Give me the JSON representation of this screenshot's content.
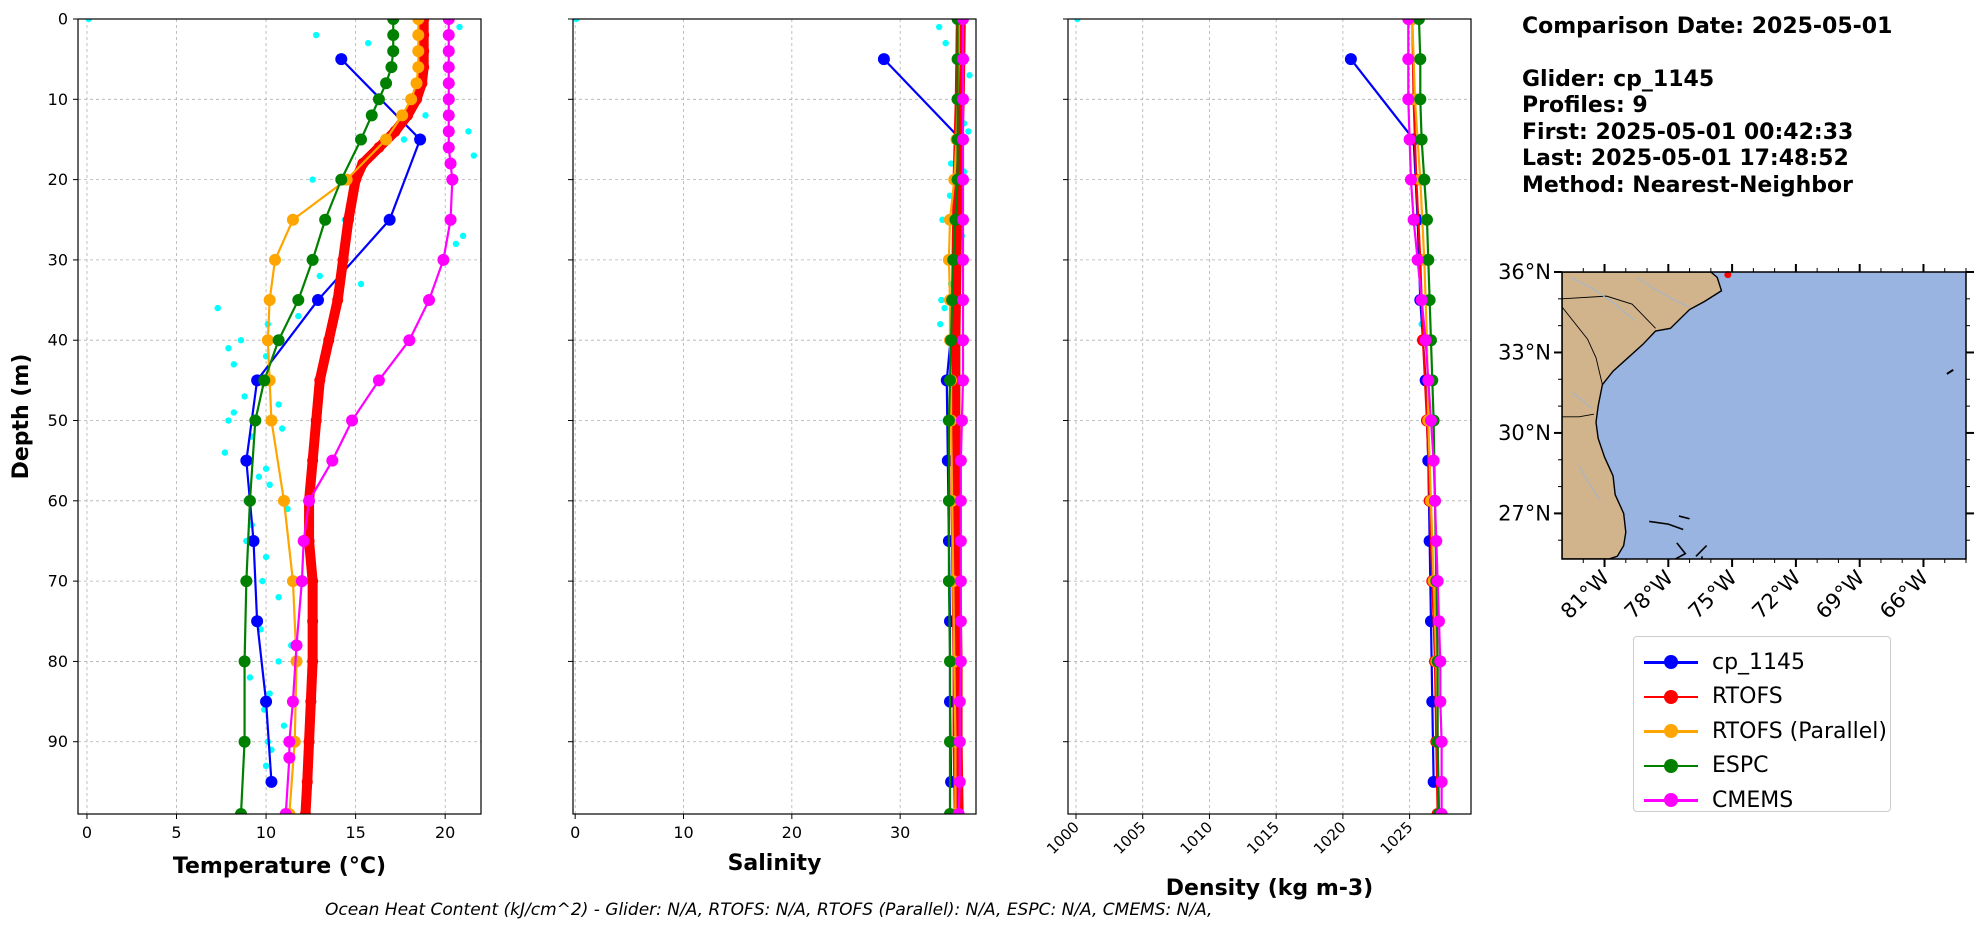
{
  "colors": {
    "glider": "#0000ff",
    "rtofs": "#ff0000",
    "rtofs_parallel": "#ffa500",
    "espc": "#008000",
    "cmems": "#ff00ff",
    "raw": "#00ffff",
    "land": "#d2b48c",
    "ocean": "#99b4e0",
    "grid": "#b0b0b0"
  },
  "info": {
    "comparison_date": "Comparison Date: 2025-05-01",
    "glider": "Glider: cp_1145",
    "profiles": "Profiles: 9",
    "first": "First: 2025-05-01 00:42:33",
    "last": "Last: 2025-05-01 17:48:52",
    "method": "Method: Nearest-Neighbor"
  },
  "legend": [
    {
      "label": "cp_1145",
      "color": "#0000ff"
    },
    {
      "label": "RTOFS",
      "color": "#ff0000"
    },
    {
      "label": "RTOFS (Parallel)",
      "color": "#ffa500"
    },
    {
      "label": "ESPC",
      "color": "#008000"
    },
    {
      "label": "CMEMS",
      "color": "#ff00ff"
    }
  ],
  "footer": "Ocean Heat Content (kJ/cm^2) - Glider: N/A,  RTOFS: N/A,  RTOFS (Parallel): N/A,  ESPC: N/A,  CMEMS: N/A,",
  "map": {
    "lat_ticks": [
      "36°N",
      "33°N",
      "30°N",
      "27°N"
    ],
    "lat_values": [
      36,
      33,
      30,
      27
    ],
    "lon_ticks": [
      "81°W",
      "78°W",
      "75°W",
      "72°W",
      "69°W",
      "66°W"
    ],
    "lon_values": [
      -81,
      -78,
      -75,
      -72,
      -69,
      -66
    ],
    "lon_range": [
      -83,
      -64
    ],
    "lat_range": [
      25.3,
      36
    ],
    "glider_position": {
      "lon": -75.2,
      "lat": 35.9
    }
  },
  "chart_data": [
    {
      "type": "line",
      "xlabel": "Temperature (°C)",
      "ylabel": "Depth (m)",
      "xlim": [
        -0.5,
        22
      ],
      "ylim": [
        99,
        0
      ],
      "xticks": [
        0,
        5,
        10,
        15,
        20
      ],
      "yticks": [
        0,
        10,
        20,
        30,
        40,
        50,
        60,
        70,
        80,
        90
      ],
      "grid": true,
      "series": [
        {
          "name": "raw",
          "style": "scatter",
          "depth": [
            0,
            1,
            2,
            3,
            12,
            14,
            15,
            17,
            20,
            25,
            27,
            28,
            32,
            33,
            36,
            37,
            38,
            40,
            41,
            42,
            43,
            45,
            47,
            48,
            49,
            50,
            51,
            52,
            54,
            56,
            57,
            58,
            60,
            61,
            63,
            65,
            67,
            70,
            72,
            76,
            78,
            80,
            82,
            84,
            86,
            88,
            90,
            91,
            93,
            95
          ],
          "values": [
            0.1,
            20.8,
            12.8,
            15.7,
            18.9,
            21.3,
            17.7,
            21.6,
            12.6,
            14.4,
            21.0,
            20.6,
            13.0,
            15.3,
            7.3,
            11.8,
            10.1,
            8.6,
            7.9,
            10.0,
            8.2,
            9.4,
            8.8,
            10.7,
            8.2,
            7.9,
            10.9,
            9.2,
            7.7,
            10.0,
            9.6,
            10.2,
            8.9,
            11.2,
            9.2,
            8.9,
            10.0,
            9.8,
            10.7,
            9.7,
            11.4,
            10.7,
            9.1,
            10.2,
            9.9,
            11.0,
            10.1,
            10.3,
            10.0,
            10.4
          ]
        },
        {
          "name": "cp_1145",
          "style": "line",
          "depth": [
            5,
            15,
            25,
            35,
            45,
            55,
            65,
            75,
            85,
            95
          ],
          "values": [
            14.2,
            18.6,
            16.9,
            12.9,
            9.5,
            8.9,
            9.3,
            9.5,
            10.0,
            10.3
          ]
        },
        {
          "name": "RTOFS",
          "style": "thick",
          "depth": [
            0,
            2,
            4,
            6,
            8,
            10,
            12,
            14,
            16,
            18,
            20,
            25,
            30,
            35,
            40,
            45,
            50,
            55,
            60,
            65,
            70,
            75,
            80,
            85,
            90,
            95,
            99
          ],
          "values": [
            18.8,
            18.8,
            18.8,
            18.8,
            18.7,
            18.4,
            17.9,
            17.2,
            16.3,
            15.4,
            15.0,
            14.6,
            14.3,
            14.0,
            13.5,
            13.0,
            12.8,
            12.6,
            12.4,
            12.4,
            12.6,
            12.6,
            12.6,
            12.5,
            12.4,
            12.3,
            12.2
          ]
        },
        {
          "name": "RTOFS (Parallel)",
          "style": "line",
          "depth": [
            0,
            2,
            4,
            6,
            8,
            10,
            12,
            15,
            20,
            25,
            30,
            35,
            40,
            45,
            50,
            60,
            70,
            80,
            90,
            99
          ],
          "values": [
            18.5,
            18.5,
            18.5,
            18.5,
            18.4,
            18.1,
            17.6,
            16.7,
            14.5,
            11.5,
            10.5,
            10.2,
            10.1,
            10.2,
            10.3,
            11.0,
            11.5,
            11.7,
            11.6,
            11.3
          ]
        },
        {
          "name": "ESPC",
          "style": "line",
          "depth": [
            0,
            2,
            4,
            6,
            8,
            10,
            12,
            15,
            20,
            25,
            30,
            35,
            40,
            45,
            50,
            60,
            70,
            80,
            90,
            99
          ],
          "values": [
            17.1,
            17.1,
            17.1,
            17.0,
            16.7,
            16.3,
            15.9,
            15.3,
            14.2,
            13.3,
            12.6,
            11.8,
            10.7,
            9.9,
            9.4,
            9.1,
            8.9,
            8.8,
            8.8,
            8.6
          ]
        },
        {
          "name": "CMEMS",
          "style": "line",
          "depth": [
            0,
            2,
            4,
            6,
            8,
            10,
            12,
            14,
            16,
            18,
            20,
            25,
            30,
            35,
            40,
            45,
            50,
            55,
            60,
            65,
            70,
            78,
            85,
            90,
            92,
            99
          ],
          "values": [
            20.2,
            20.2,
            20.2,
            20.2,
            20.2,
            20.2,
            20.2,
            20.2,
            20.2,
            20.3,
            20.4,
            20.3,
            19.9,
            19.1,
            18.0,
            16.3,
            14.8,
            13.7,
            12.4,
            12.1,
            12.0,
            11.7,
            11.5,
            11.3,
            11.3,
            11.1
          ]
        }
      ]
    },
    {
      "type": "line",
      "xlabel": "Salinity",
      "ylabel": "",
      "xlim": [
        -0.2,
        37
      ],
      "ylim": [
        99,
        0
      ],
      "xticks": [
        0,
        10,
        20,
        30
      ],
      "yticks": [
        0,
        10,
        20,
        30,
        40,
        50,
        60,
        70,
        80,
        90
      ],
      "grid": true,
      "series": [
        {
          "name": "raw",
          "style": "scatter",
          "depth": [
            0,
            1,
            3,
            5,
            7,
            10,
            13,
            14,
            16,
            18,
            19,
            22,
            25,
            27,
            30,
            33,
            35,
            36,
            38,
            40,
            45,
            50,
            60,
            70,
            80,
            90
          ],
          "values": [
            0.1,
            33.6,
            34.2,
            36.1,
            36.4,
            35.8,
            35.9,
            36.3,
            35.5,
            34.7,
            35.9,
            34.6,
            33.9,
            35.7,
            34.3,
            34.7,
            33.8,
            34.1,
            33.7,
            34.4,
            34.1,
            34.2,
            34.3,
            34.4,
            34.4,
            34.5
          ]
        },
        {
          "name": "cp_1145",
          "style": "line",
          "depth": [
            5,
            15,
            25,
            35,
            45,
            55,
            65,
            75,
            85,
            95
          ],
          "values": [
            28.5,
            35.6,
            35.2,
            35.0,
            34.3,
            34.4,
            34.5,
            34.6,
            34.6,
            34.7
          ]
        },
        {
          "name": "RTOFS",
          "style": "thick",
          "depth": [
            0,
            10,
            20,
            30,
            40,
            50,
            60,
            70,
            80,
            90,
            99
          ],
          "values": [
            35.6,
            35.5,
            35.3,
            35.2,
            35.1,
            35.1,
            35.1,
            35.2,
            35.3,
            35.3,
            35.4
          ]
        },
        {
          "name": "RTOFS (Parallel)",
          "style": "line",
          "depth": [
            0,
            5,
            10,
            15,
            20,
            25,
            30,
            35,
            40,
            45,
            50,
            60,
            70,
            80,
            90,
            99
          ],
          "values": [
            35.4,
            35.4,
            35.3,
            35.2,
            35.0,
            34.6,
            34.5,
            34.6,
            34.6,
            34.7,
            34.7,
            34.8,
            34.9,
            35.0,
            35.1,
            35.1
          ]
        },
        {
          "name": "ESPC",
          "style": "line",
          "depth": [
            0,
            5,
            10,
            15,
            20,
            25,
            30,
            35,
            40,
            45,
            50,
            60,
            70,
            80,
            90,
            99
          ],
          "values": [
            35.3,
            35.3,
            35.3,
            35.3,
            35.3,
            35.1,
            34.9,
            34.8,
            34.7,
            34.6,
            34.5,
            34.5,
            34.5,
            34.6,
            34.6,
            34.6
          ]
        },
        {
          "name": "CMEMS",
          "style": "line",
          "depth": [
            0,
            5,
            10,
            15,
            20,
            25,
            30,
            35,
            40,
            45,
            50,
            55,
            60,
            65,
            70,
            75,
            80,
            85,
            90,
            95,
            99
          ],
          "values": [
            35.8,
            35.8,
            35.8,
            35.8,
            35.8,
            35.8,
            35.8,
            35.8,
            35.8,
            35.8,
            35.7,
            35.6,
            35.6,
            35.6,
            35.6,
            35.6,
            35.6,
            35.5,
            35.5,
            35.5,
            35.4
          ]
        }
      ]
    },
    {
      "type": "line",
      "xlabel": "Density (kg m-3)",
      "ylabel": "",
      "xlim": [
        999.4,
        1029.6
      ],
      "ylim": [
        99,
        0
      ],
      "xticks": [
        1000,
        1005,
        1010,
        1015,
        1020,
        1025
      ],
      "yticks": [
        0,
        10,
        20,
        30,
        40,
        50,
        60,
        70,
        80,
        90
      ],
      "grid": true,
      "series": [
        {
          "name": "raw",
          "style": "scatter",
          "depth": [
            0,
            35,
            38,
            55
          ],
          "values": [
            1000.1,
            1025.6,
            1025.9,
            1026.3
          ]
        },
        {
          "name": "cp_1145",
          "style": "line",
          "depth": [
            5,
            15,
            25,
            35,
            45,
            55,
            65,
            75,
            85,
            95
          ],
          "values": [
            1020.6,
            1025.3,
            1025.6,
            1025.8,
            1026.2,
            1026.4,
            1026.5,
            1026.6,
            1026.7,
            1026.8
          ]
        },
        {
          "name": "RTOFS",
          "style": "line",
          "depth": [
            0,
            10,
            20,
            30,
            40,
            50,
            60,
            70,
            80,
            90,
            99
          ],
          "values": [
            1025.2,
            1025.3,
            1025.5,
            1025.8,
            1026.0,
            1026.3,
            1026.5,
            1026.7,
            1026.9,
            1027.0,
            1027.1
          ]
        },
        {
          "name": "RTOFS (Parallel)",
          "style": "line",
          "depth": [
            0,
            10,
            20,
            30,
            40,
            50,
            60,
            70,
            80,
            90,
            99
          ],
          "values": [
            1025.2,
            1025.4,
            1025.8,
            1026.1,
            1026.3,
            1026.4,
            1026.6,
            1026.8,
            1027.0,
            1027.1,
            1027.2
          ]
        },
        {
          "name": "ESPC",
          "style": "line",
          "depth": [
            0,
            5,
            10,
            15,
            20,
            25,
            30,
            35,
            40,
            45,
            50,
            60,
            70,
            80,
            90,
            99
          ],
          "values": [
            1025.7,
            1025.8,
            1025.8,
            1025.9,
            1026.1,
            1026.3,
            1026.4,
            1026.5,
            1026.6,
            1026.7,
            1026.8,
            1026.9,
            1027.0,
            1027.1,
            1027.1,
            1027.2
          ]
        },
        {
          "name": "CMEMS",
          "style": "line",
          "depth": [
            0,
            5,
            10,
            15,
            20,
            25,
            30,
            35,
            40,
            45,
            50,
            55,
            60,
            65,
            70,
            75,
            80,
            85,
            90,
            95,
            99
          ],
          "values": [
            1024.9,
            1024.9,
            1024.9,
            1025.0,
            1025.1,
            1025.3,
            1025.6,
            1025.9,
            1026.2,
            1026.4,
            1026.6,
            1026.8,
            1026.9,
            1027.0,
            1027.1,
            1027.2,
            1027.3,
            1027.3,
            1027.4,
            1027.4,
            1027.4
          ]
        }
      ]
    }
  ]
}
